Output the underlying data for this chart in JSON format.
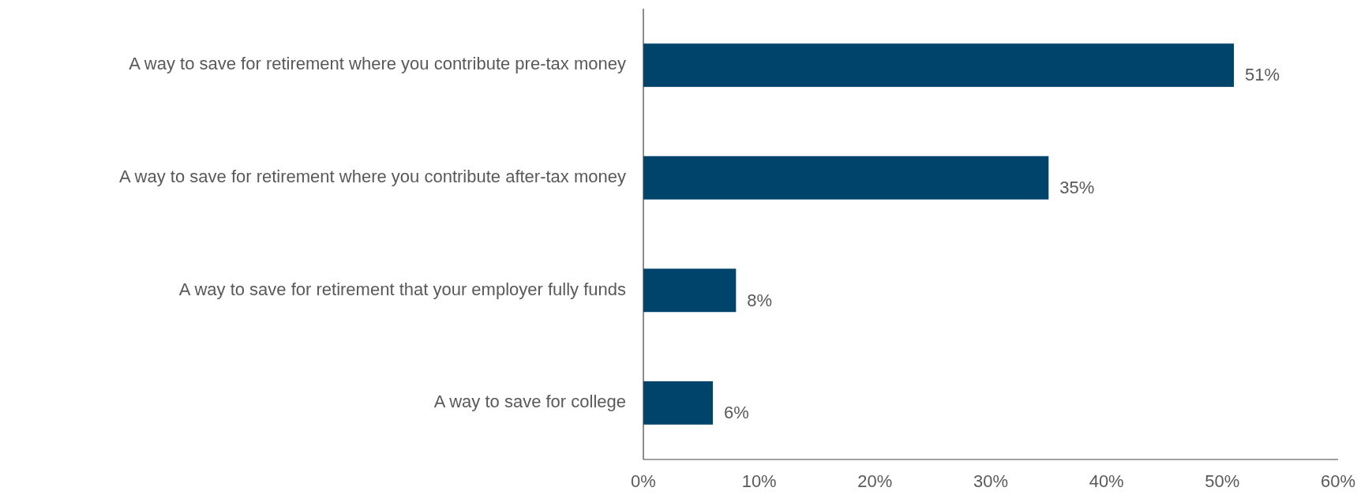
{
  "chart_data": {
    "type": "bar",
    "orientation": "horizontal",
    "categories": [
      "A way to save for retirement where you contribute pre-tax money",
      "A way to save for retirement where you contribute after-tax money",
      "A way to save for retirement that your employer fully funds",
      "A way to save for college"
    ],
    "values": [
      51,
      35,
      8,
      6
    ],
    "value_labels": [
      "51%",
      "35%",
      "8%",
      "6%"
    ],
    "color": "#00436b",
    "xlim": [
      0,
      60
    ],
    "xticks": [
      {
        "value": 0,
        "label": "0%"
      },
      {
        "value": 10,
        "label": "10%"
      },
      {
        "value": 20,
        "label": "20%"
      },
      {
        "value": 30,
        "label": "30%"
      },
      {
        "value": 40,
        "label": "40%"
      },
      {
        "value": 50,
        "label": "50%"
      },
      {
        "value": 60,
        "label": "60%"
      }
    ],
    "grid": false
  }
}
